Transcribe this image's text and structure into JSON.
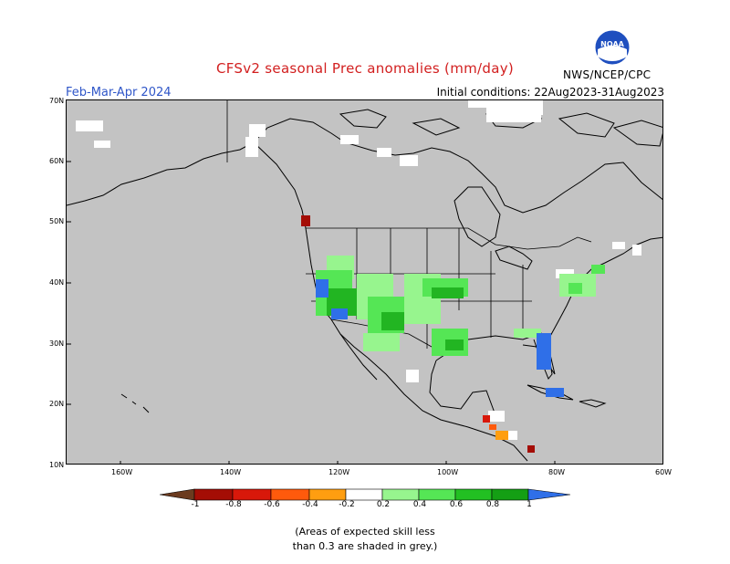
{
  "title": "CFSv2 seasonal Prec anomalies (mm/day)",
  "season": "Feb-Mar-Apr 2024",
  "initial_conditions": "Initial conditions: 22Aug2023-31Aug2023",
  "agency": "NWS/NCEP/CPC",
  "logo": {
    "name": "noaa-logo",
    "text": "NOAA"
  },
  "axes": {
    "lat_labels": [
      "70N",
      "60N",
      "50N",
      "40N",
      "30N",
      "20N",
      "10N"
    ],
    "lon_labels": [
      "160W",
      "140W",
      "120W",
      "100W",
      "80W",
      "60W"
    ]
  },
  "colorbar": {
    "labels": [
      "-1",
      "-0.8",
      "-0.6",
      "-0.4",
      "-0.2",
      "0.2",
      "0.4",
      "0.6",
      "0.8",
      "1"
    ],
    "colors": [
      "#6b3b1f",
      "#a40d05",
      "#d8180a",
      "#ff5a0c",
      "#ff9e10",
      "#ffffff",
      "#97f58e",
      "#55e655",
      "#22c022",
      "#149f14",
      "#2f6fe8"
    ]
  },
  "colors": {
    "land_grey": "#c3c3c3",
    "ocean": "#c3c3c3",
    "skill_white": "#ffffff",
    "wet_light": "#97f58e",
    "wet_mid": "#55e655",
    "wet_dark": "#22b522",
    "wet_blue": "#2f6fe8",
    "dry_dark": "#a40d05",
    "dry_orange": "#ff9e10"
  },
  "note": {
    "line1": "(Areas of expected skill less",
    "line2": "than 0.3 are shaded in grey.)"
  }
}
